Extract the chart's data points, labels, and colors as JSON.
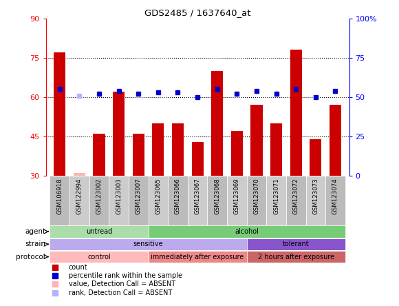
{
  "title": "GDS2485 / 1637640_at",
  "samples": [
    "GSM106918",
    "GSM122994",
    "GSM123002",
    "GSM123003",
    "GSM123007",
    "GSM123065",
    "GSM123066",
    "GSM123067",
    "GSM123068",
    "GSM123069",
    "GSM123070",
    "GSM123071",
    "GSM123072",
    "GSM123073",
    "GSM123074"
  ],
  "count_values": [
    77,
    31,
    46,
    62,
    46,
    50,
    50,
    43,
    70,
    47,
    57,
    50,
    78,
    44,
    57
  ],
  "rank_values": [
    55,
    51,
    52,
    54,
    52,
    53,
    53,
    50,
    55,
    52,
    54,
    52,
    55,
    50,
    54
  ],
  "absent_count": [
    null,
    31,
    null,
    null,
    null,
    null,
    null,
    null,
    null,
    null,
    null,
    null,
    null,
    null,
    null
  ],
  "absent_rank": [
    null,
    51,
    null,
    null,
    null,
    null,
    null,
    null,
    null,
    null,
    null,
    null,
    null,
    null,
    null
  ],
  "count_bar_color": "#cc0000",
  "rank_marker_color": "#0000cc",
  "absent_count_color": "#ffb3b3",
  "absent_rank_color": "#b3b3ff",
  "left_ylim": [
    30,
    90
  ],
  "right_ylim": [
    0,
    100
  ],
  "left_yticks": [
    30,
    45,
    60,
    75,
    90
  ],
  "right_yticks": [
    0,
    25,
    50,
    75,
    100
  ],
  "right_yticklabels": [
    "0",
    "25",
    "50",
    "75",
    "100%"
  ],
  "hlines": [
    45,
    60,
    75
  ],
  "agent_groups": [
    {
      "label": "untread",
      "start": 0,
      "end": 5,
      "color": "#aaddaa"
    },
    {
      "label": "alcohol",
      "start": 5,
      "end": 15,
      "color": "#77cc77"
    }
  ],
  "strain_groups": [
    {
      "label": "sensitive",
      "start": 0,
      "end": 10,
      "color": "#bbaaee"
    },
    {
      "label": "tolerant",
      "start": 10,
      "end": 15,
      "color": "#8855cc"
    }
  ],
  "protocol_groups": [
    {
      "label": "control",
      "start": 0,
      "end": 5,
      "color": "#ffbbbb"
    },
    {
      "label": "immediately after exposure",
      "start": 5,
      "end": 10,
      "color": "#ee8888"
    },
    {
      "label": "2 hours after exposure",
      "start": 10,
      "end": 15,
      "color": "#cc6666"
    }
  ],
  "row_labels": [
    "agent",
    "strain",
    "protocol"
  ],
  "legend_items": [
    {
      "label": "count",
      "color": "#cc0000"
    },
    {
      "label": "percentile rank within the sample",
      "color": "#0000cc"
    },
    {
      "label": "value, Detection Call = ABSENT",
      "color": "#ffb3b3"
    },
    {
      "label": "rank, Detection Call = ABSENT",
      "color": "#b3b3ff"
    }
  ],
  "bar_width": 0.6,
  "rank_marker_size": 5,
  "sample_box_colors": [
    "#bbbbbb",
    "#cccccc"
  ]
}
